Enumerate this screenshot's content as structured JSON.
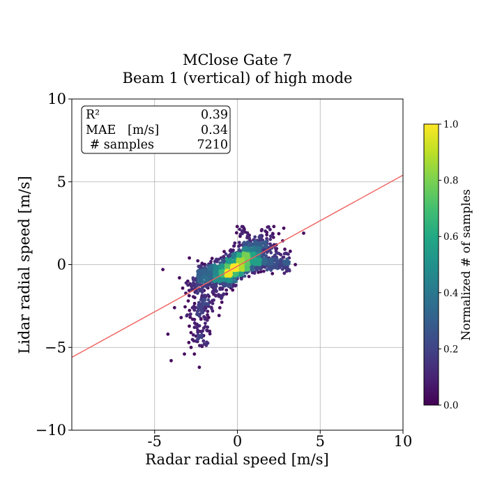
{
  "chart_data": {
    "type": "scatter",
    "title_line1": "MClose Gate 7",
    "title_line2": "Beam 1 (vertical) of high mode",
    "xlabel": "Radar radial speed [m/s]",
    "ylabel": "Lidar radial speed [m/s]",
    "xlim": [
      -10,
      10
    ],
    "ylim": [
      -10,
      10
    ],
    "xticks": [
      {
        "value": -5,
        "label": "-5"
      },
      {
        "value": 0,
        "label": "0"
      },
      {
        "value": 5,
        "label": "5"
      },
      {
        "value": 10,
        "label": "10"
      }
    ],
    "yticks": [
      {
        "value": -10,
        "label": "−10"
      },
      {
        "value": -5,
        "label": "−5"
      },
      {
        "value": 0,
        "label": "0"
      },
      {
        "value": 5,
        "label": "5"
      },
      {
        "value": 10,
        "label": "10"
      }
    ],
    "grid": true,
    "regression_line": {
      "slope": 0.55,
      "intercept": -0.1,
      "color": "#f0605d"
    },
    "stats_box": {
      "placement": "top-left",
      "rows": [
        {
          "label": "R²",
          "value": "0.39"
        },
        {
          "label": "MAE   [m/s]",
          "value": "0.34"
        },
        {
          "label": " # samples",
          "value": "7210"
        }
      ]
    },
    "colorbar": {
      "label": "Normalized # of samples",
      "colormap": "viridis",
      "range": [
        0,
        1
      ],
      "ticks": [
        "0.0",
        "0.2",
        "0.4",
        "0.6",
        "0.8",
        "1.0"
      ]
    },
    "points_summary": {
      "samples": 7210,
      "density_peak": [
        0.2,
        0.0
      ],
      "core_extent_x": [
        -1.5,
        1.5
      ],
      "outliers": [
        [
          -4.5,
          -0.3
        ],
        [
          -4.2,
          -4.2
        ],
        [
          -4.0,
          -5.8
        ],
        [
          -3.2,
          -5.4
        ],
        [
          -2.8,
          -5.0
        ],
        [
          -2.6,
          -5.4
        ],
        [
          -2.3,
          -6.2
        ],
        [
          -3.8,
          -2.6
        ],
        [
          4.0,
          1.9
        ],
        [
          3.5,
          0.0
        ],
        [
          -2.0,
          -4.8
        ],
        [
          -1.8,
          -4.0
        ],
        [
          -3.4,
          -3.2
        ],
        [
          -3.0,
          -1.0
        ],
        [
          2.8,
          2.2
        ],
        [
          2.2,
          2.3
        ],
        [
          -2.5,
          -3.6
        ],
        [
          -2.2,
          -3.3
        ],
        [
          -1.5,
          -2.8
        ],
        [
          3.0,
          0.3
        ],
        [
          -3.5,
          -0.8
        ],
        [
          -2.9,
          0.4
        ]
      ]
    }
  }
}
